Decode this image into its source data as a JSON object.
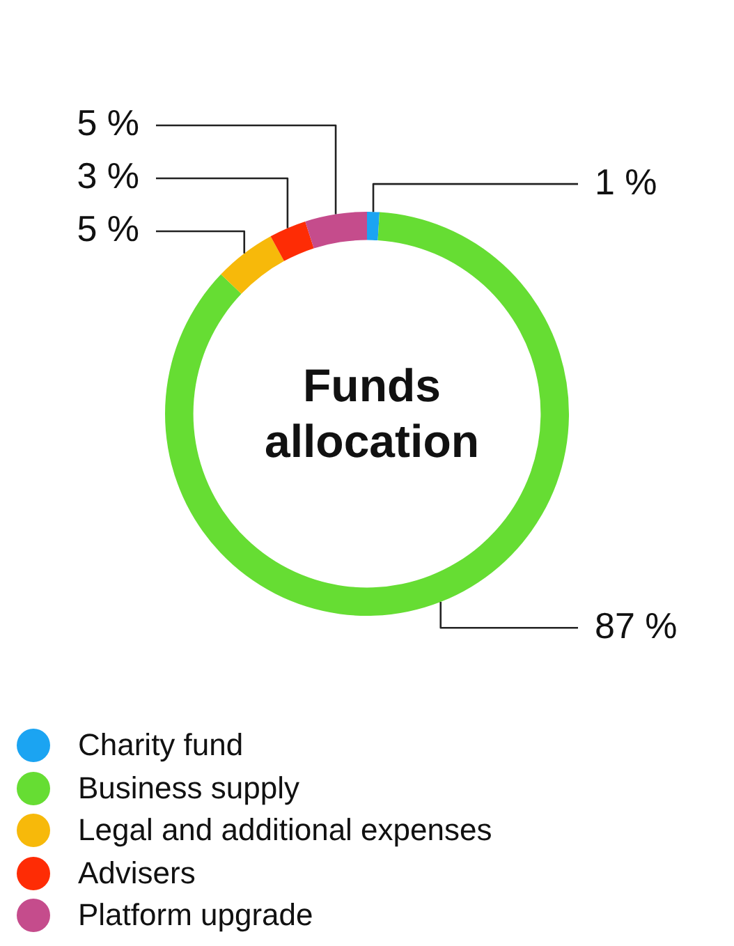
{
  "chart_data": {
    "type": "donut",
    "title": "Funds allocation",
    "categories": [
      "Charity fund",
      "Business supply",
      "Legal and additional expenses",
      "Advisers",
      "Platform upgrade"
    ],
    "values": [
      1,
      87,
      5,
      3,
      5
    ],
    "colors": [
      "#1ba4f2",
      "#66dd33",
      "#f7b90a",
      "#fe2c05",
      "#c54c8c"
    ],
    "value_labels": [
      "1 %",
      "87 %",
      "5 %",
      "3 %",
      "5 %"
    ],
    "legend": "bottom"
  }
}
